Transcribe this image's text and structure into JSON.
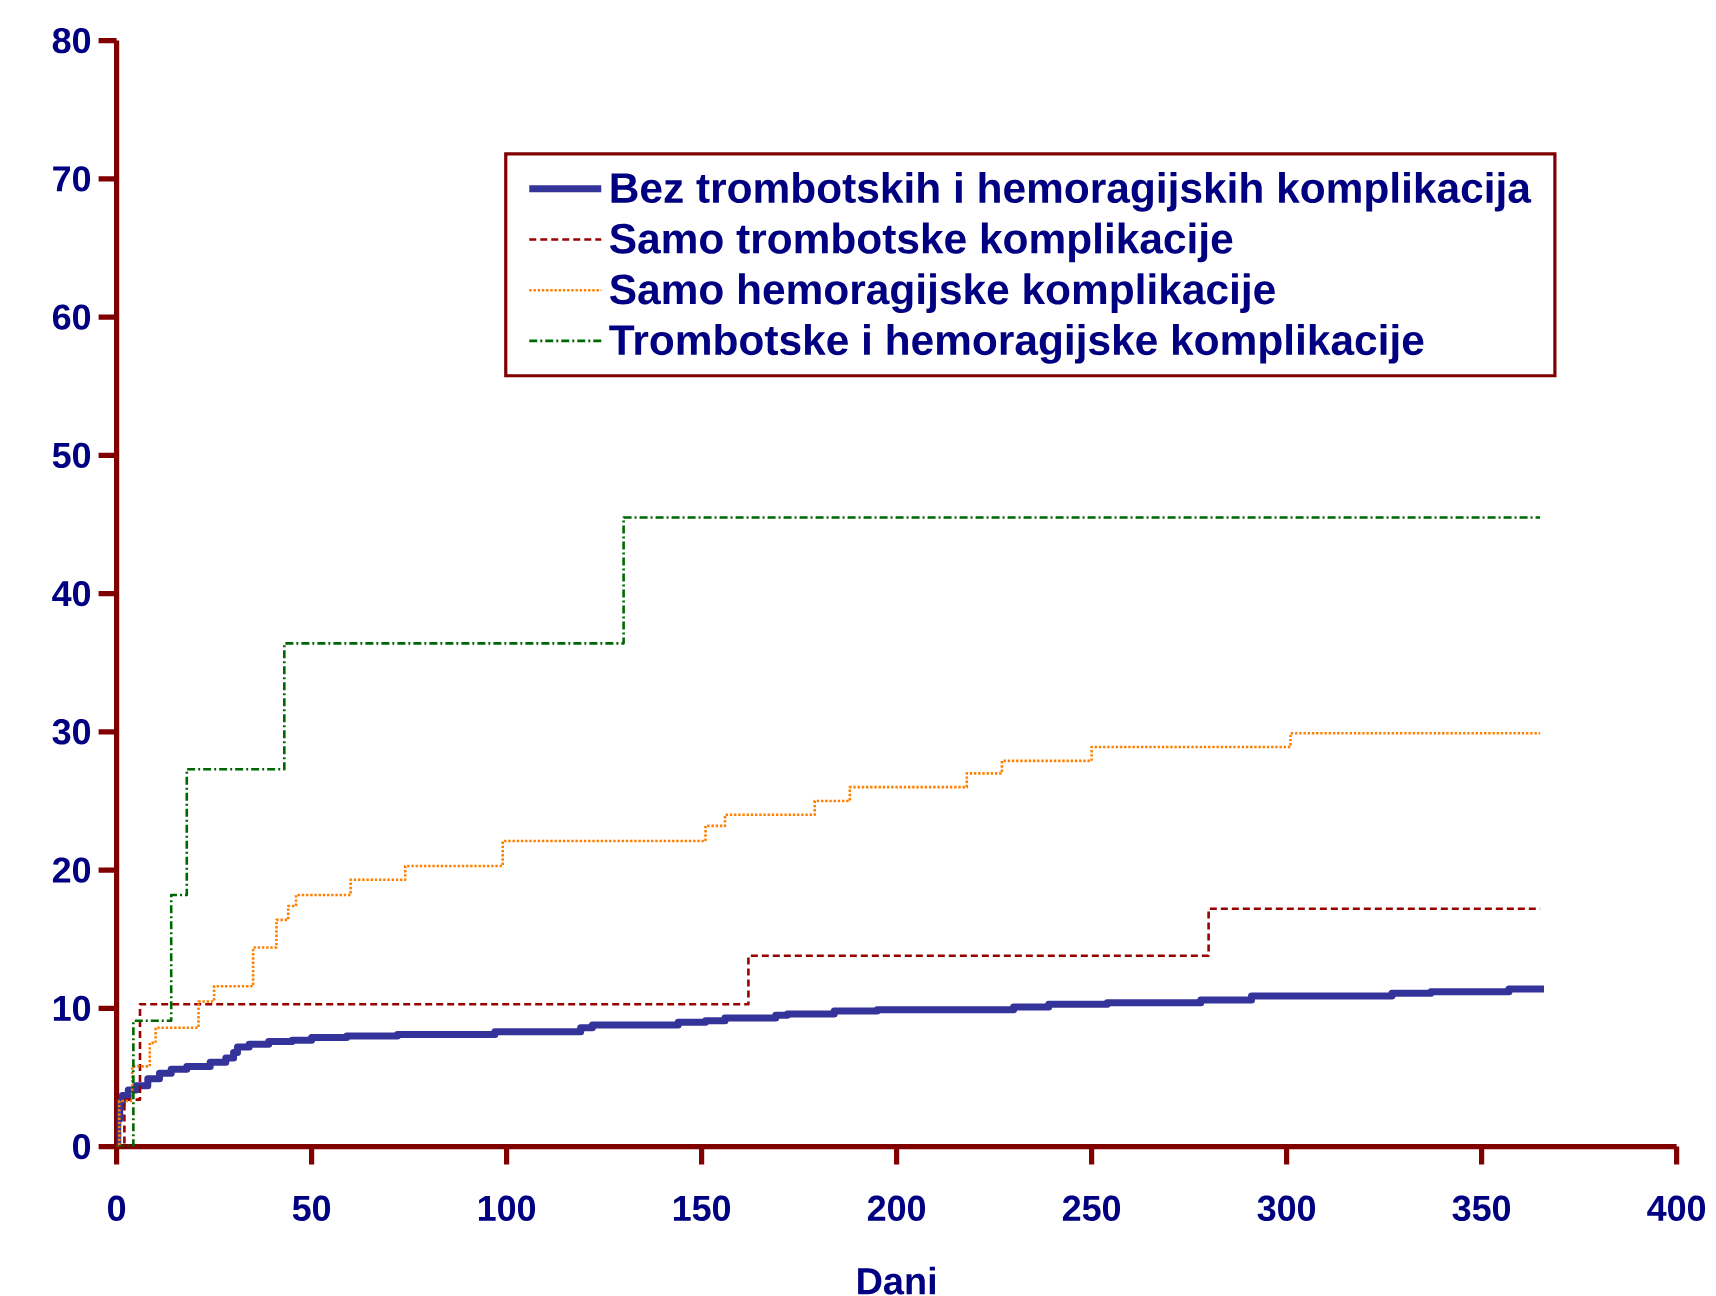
{
  "chart_data": {
    "type": "step",
    "xlabel": "Dani",
    "xlim": [
      0,
      400
    ],
    "ylim": [
      0,
      80
    ],
    "xticks": [
      0,
      50,
      100,
      150,
      200,
      250,
      300,
      350,
      400
    ],
    "yticks": [
      0,
      10,
      20,
      30,
      40,
      50,
      60,
      70,
      80
    ],
    "legend": "top right",
    "series": [
      {
        "name": "Bez trombotskih i hemoragijskih komplikacija",
        "color": "#333399",
        "line_style": "solid",
        "x": [
          0,
          0.3,
          0.8,
          1.5,
          3,
          5,
          8,
          11,
          14,
          18,
          24,
          28,
          30,
          31,
          34,
          39,
          45,
          50,
          59,
          72,
          97,
          119,
          122,
          144,
          151,
          156,
          169,
          172,
          184,
          195,
          230,
          239,
          254,
          278,
          291,
          327,
          337,
          357,
          366
        ],
        "values": [
          0,
          2.0,
          3.2,
          3.7,
          4.1,
          4.4,
          4.9,
          5.3,
          5.6,
          5.8,
          6.1,
          6.4,
          6.8,
          7.2,
          7.4,
          7.6,
          7.7,
          7.9,
          8.0,
          8.1,
          8.3,
          8.6,
          8.8,
          9.0,
          9.1,
          9.3,
          9.5,
          9.6,
          9.8,
          9.9,
          10.1,
          10.3,
          10.4,
          10.6,
          10.9,
          11.1,
          11.2,
          11.4,
          11.4
        ]
      },
      {
        "name": "Samo trombotske komplikacije",
        "color": "#990000",
        "line_style": "dashed",
        "x": [
          0,
          2,
          6,
          162,
          280,
          365
        ],
        "values": [
          0,
          3.4,
          10.3,
          13.8,
          17.2,
          17.2
        ]
      },
      {
        "name": "Samo hemoragijske komplikacije",
        "color": "#ff8000",
        "line_style": "dotted",
        "x": [
          0,
          0.7,
          4,
          8.5,
          10,
          21,
          25,
          35,
          41,
          44,
          46,
          60,
          74,
          99,
          151,
          156,
          179,
          188,
          218,
          227,
          250,
          301,
          365
        ],
        "values": [
          0,
          3.3,
          5.8,
          7.5,
          8.6,
          10.5,
          11.6,
          14.4,
          16.4,
          17.4,
          18.2,
          19.3,
          20.3,
          22.1,
          23.2,
          24.0,
          25.0,
          26.0,
          27.0,
          27.9,
          28.9,
          29.9,
          29.9
        ]
      },
      {
        "name": "Trombotske i hemoragijske komplikacije",
        "color": "#006600",
        "line_style": "dashdot",
        "x": [
          0,
          4.3,
          14,
          18,
          43,
          130,
          365
        ],
        "values": [
          0,
          9.1,
          18.2,
          27.3,
          36.4,
          45.5,
          45.5
        ]
      }
    ]
  }
}
